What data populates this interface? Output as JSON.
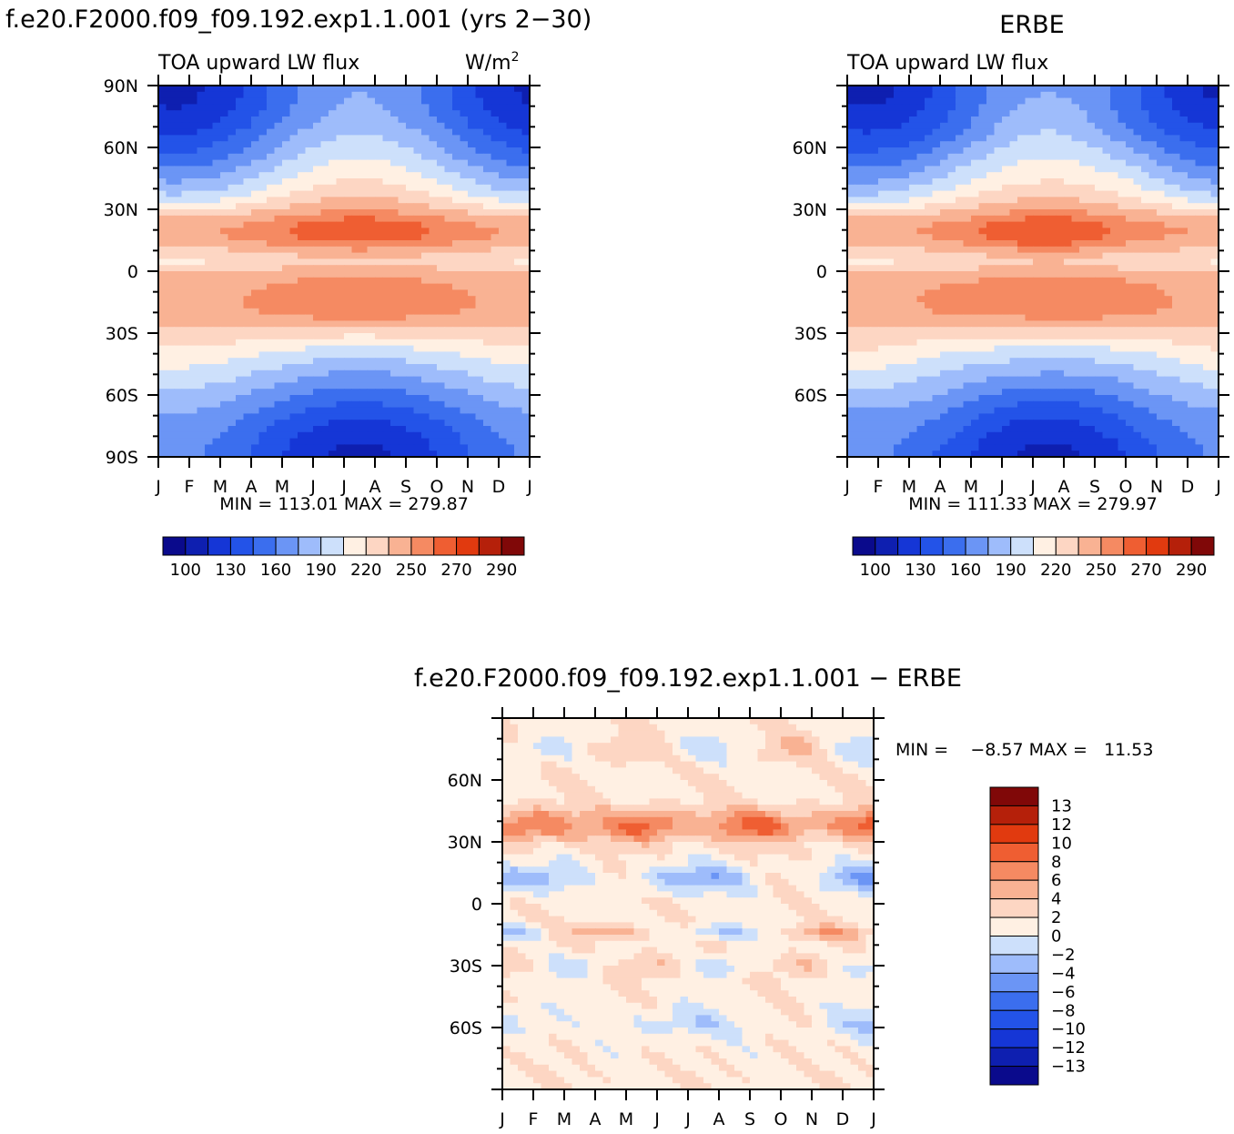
{
  "colors": {
    "levels_abs": [
      "#0a0a8c",
      "#0e1fb0",
      "#1536d6",
      "#2353e8",
      "#3b6eee",
      "#6b95f5",
      "#9ebcfb",
      "#cde0fb",
      "#fff0e3",
      "#fdd6c3",
      "#f9b293",
      "#f58a62",
      "#ef5e32",
      "#e13a0f",
      "#b5200a",
      "#800808"
    ],
    "levels_diff": [
      "#0a0a8c",
      "#0e1fb0",
      "#1536d6",
      "#2353e8",
      "#3b6eee",
      "#6b95f5",
      "#9ebcfb",
      "#cde0fb",
      "#fff0e3",
      "#fdd6c3",
      "#f9b293",
      "#f58a62",
      "#ef5e32",
      "#e13a0f",
      "#b5200a",
      "#800808"
    ]
  },
  "months": [
    "J",
    "F",
    "M",
    "A",
    "M",
    "J",
    "J",
    "A",
    "S",
    "O",
    "N",
    "D",
    "J"
  ],
  "chart_data": [
    {
      "type": "heatmap",
      "title": "f.e20.F2000.f09_f09.192.exp1.1.001 (yrs 2−30)",
      "subtitle_left": "TOA upward LW flux",
      "units": "W/m",
      "units_sup": "2",
      "ylabels": [
        "90N",
        "60N",
        "30N",
        "0",
        "30S",
        "60S",
        "90S"
      ],
      "stats": "MIN = 113.01  MAX = 279.87",
      "colorbar_ticks": [
        "100",
        "130",
        "160",
        "190",
        "220",
        "250",
        "270",
        "290"
      ],
      "z_min": 113.01,
      "z_max": 279.87
    },
    {
      "type": "heatmap",
      "title": "ERBE",
      "subtitle_left": "TOA upward LW flux",
      "ylabels": [
        "60N",
        "30N",
        "0",
        "30S",
        "60S"
      ],
      "stats": "MIN = 111.33  MAX = 279.97",
      "colorbar_ticks": [
        "100",
        "130",
        "160",
        "190",
        "220",
        "250",
        "270",
        "290"
      ],
      "z_min": 111.33,
      "z_max": 279.97
    },
    {
      "type": "heatmap",
      "title": "f.e20.F2000.f09_f09.192.exp1.1.001 − ERBE",
      "ylabels": [
        "60N",
        "30N",
        "0",
        "30S",
        "60S"
      ],
      "stats": "MIN =    −8.57 MAX =   11.53",
      "colorbar_ticks": [
        "13",
        "12",
        "10",
        "8",
        "6",
        "4",
        "2",
        "0",
        "−2",
        "−4",
        "−6",
        "−8",
        "−10",
        "−12",
        "−13"
      ],
      "z_min": -8.57,
      "z_max": 11.53
    }
  ]
}
